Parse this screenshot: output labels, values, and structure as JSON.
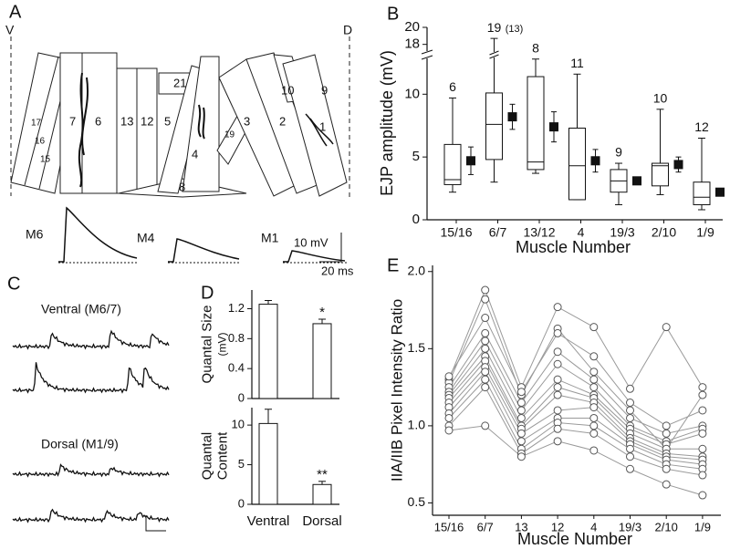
{
  "panel_a": {
    "letter": "A",
    "ventral": "V",
    "dorsal": "D",
    "muscles": [
      "7",
      "6",
      "13",
      "12",
      "5",
      "21",
      "4",
      "8",
      "3",
      "2",
      "10",
      "9",
      "1",
      "17",
      "16",
      "15",
      "19"
    ],
    "traces": [
      "M6",
      "M4",
      "M1"
    ],
    "scale_v": "10 mV",
    "scale_t": "20 ms"
  },
  "panel_c": {
    "letter": "C",
    "ventral": "Ventral (M6/7)",
    "dorsal": "Dorsal (M1/9)"
  },
  "chart_data": [
    {
      "type": "box",
      "panel": "B",
      "categories": [
        "15/16",
        "6/7",
        "13/12",
        "4",
        "19/3",
        "2/10",
        "1/9"
      ],
      "n_labels": [
        6,
        19,
        8,
        11,
        9,
        10,
        12
      ],
      "n_note": "(13)",
      "low": [
        2.2,
        3.0,
        3.7,
        1.6,
        1.2,
        2.0,
        0.8
      ],
      "q1": [
        2.8,
        4.8,
        4.0,
        1.6,
        2.2,
        2.7,
        1.2
      ],
      "median": [
        3.2,
        7.6,
        4.6,
        4.3,
        3.1,
        4.3,
        1.8
      ],
      "q3": [
        6.0,
        10.1,
        11.4,
        7.3,
        4.0,
        4.5,
        3.0
      ],
      "high": [
        9.7,
        18.7,
        12.8,
        11.6,
        4.5,
        8.8,
        6.5
      ],
      "means": [
        4.7,
        8.2,
        7.4,
        4.7,
        3.1,
        4.4,
        2.2
      ],
      "errors": [
        1.1,
        1.0,
        1.2,
        0.9,
        0.3,
        0.6,
        0.3
      ],
      "ylim": [
        0,
        20
      ],
      "yticks": [
        0,
        5,
        10,
        18,
        20
      ],
      "axis_break": [
        13,
        17
      ],
      "ylabel": "EJP amplitude (mV)",
      "xlabel": "Muscle Number"
    },
    {
      "type": "bar",
      "panel": "D",
      "categories": [
        null,
        null
      ],
      "values": [
        1.26,
        1.0
      ],
      "errors": [
        0.05,
        0.06
      ],
      "annotations": [
        null,
        "*"
      ],
      "ylim": [
        0,
        1.45
      ],
      "yticks": [
        0,
        0.4,
        0.8,
        1.2
      ],
      "ylabel": [
        "Quantal Size",
        "(mV)"
      ]
    },
    {
      "type": "bar",
      "categories": [
        "Ventral",
        "Dorsal"
      ],
      "values": [
        10.2,
        2.5
      ],
      "errors": [
        1.8,
        0.4
      ],
      "annotations": [
        null,
        "**"
      ],
      "ylim": [
        0,
        12.2
      ],
      "yticks": [
        0,
        5,
        10
      ],
      "ylabel": [
        "Quantal",
        "Content"
      ]
    },
    {
      "type": "line",
      "panel": "E",
      "categories": [
        "15/16",
        "6/7",
        "13",
        "12",
        "4",
        "19/3",
        "2/10",
        "1/9"
      ],
      "color": "#9a9a9a",
      "marker_color": "#555555",
      "series": [
        {
          "values": [
            1.3,
            1.88,
            1.25,
            1.77,
            1.64,
            1.24,
            1.64,
            1.25
          ]
        },
        {
          "values": [
            1.28,
            1.82,
            1.2,
            1.63,
            1.35,
            1.1,
            0.85,
            1.2
          ]
        },
        {
          "values": [
            1.25,
            1.6,
            1.15,
            1.48,
            1.3,
            1.05,
            0.95,
            1.0
          ]
        },
        {
          "values": [
            1.22,
            1.55,
            1.1,
            1.4,
            1.25,
            1.0,
            0.9,
            0.98
          ]
        },
        {
          "values": [
            1.2,
            1.5,
            1.05,
            1.3,
            1.2,
            0.98,
            0.88,
            0.95
          ]
        },
        {
          "values": [
            1.18,
            1.45,
            1.0,
            1.25,
            1.18,
            0.95,
            0.85,
            0.85
          ]
        },
        {
          "values": [
            1.15,
            1.42,
            0.98,
            1.2,
            1.15,
            0.92,
            0.82,
            0.8
          ]
        },
        {
          "values": [
            1.12,
            1.38,
            0.95,
            1.1,
            1.12,
            0.9,
            0.8,
            0.78
          ]
        },
        {
          "values": [
            1.08,
            1.35,
            0.9,
            1.05,
            1.05,
            0.88,
            0.78,
            0.75
          ]
        },
        {
          "values": [
            1.05,
            1.3,
            0.85,
            1.02,
            1.0,
            0.85,
            0.75,
            0.72
          ]
        },
        {
          "values": [
            1.0,
            1.25,
            0.82,
            0.98,
            0.95,
            0.8,
            0.72,
            0.68
          ]
        },
        {
          "values": [
            0.97,
            1.0,
            0.8,
            0.9,
            0.84,
            0.72,
            0.62,
            0.55
          ]
        },
        {
          "values": [
            1.32,
            1.7,
            1.22,
            1.6,
            1.45,
            1.15,
            1.0,
            1.1
          ]
        }
      ],
      "ylim": [
        0.42,
        2.04
      ],
      "yticks": [
        0.5,
        {
          "value": 1.0,
          "label": "1.0"
        },
        1.5,
        {
          "value": 2.0,
          "label": "2.0"
        }
      ],
      "ylabel": "IIA/IIB Pixel Intensity Ratio",
      "xlabel": "Muscle Number"
    }
  ]
}
